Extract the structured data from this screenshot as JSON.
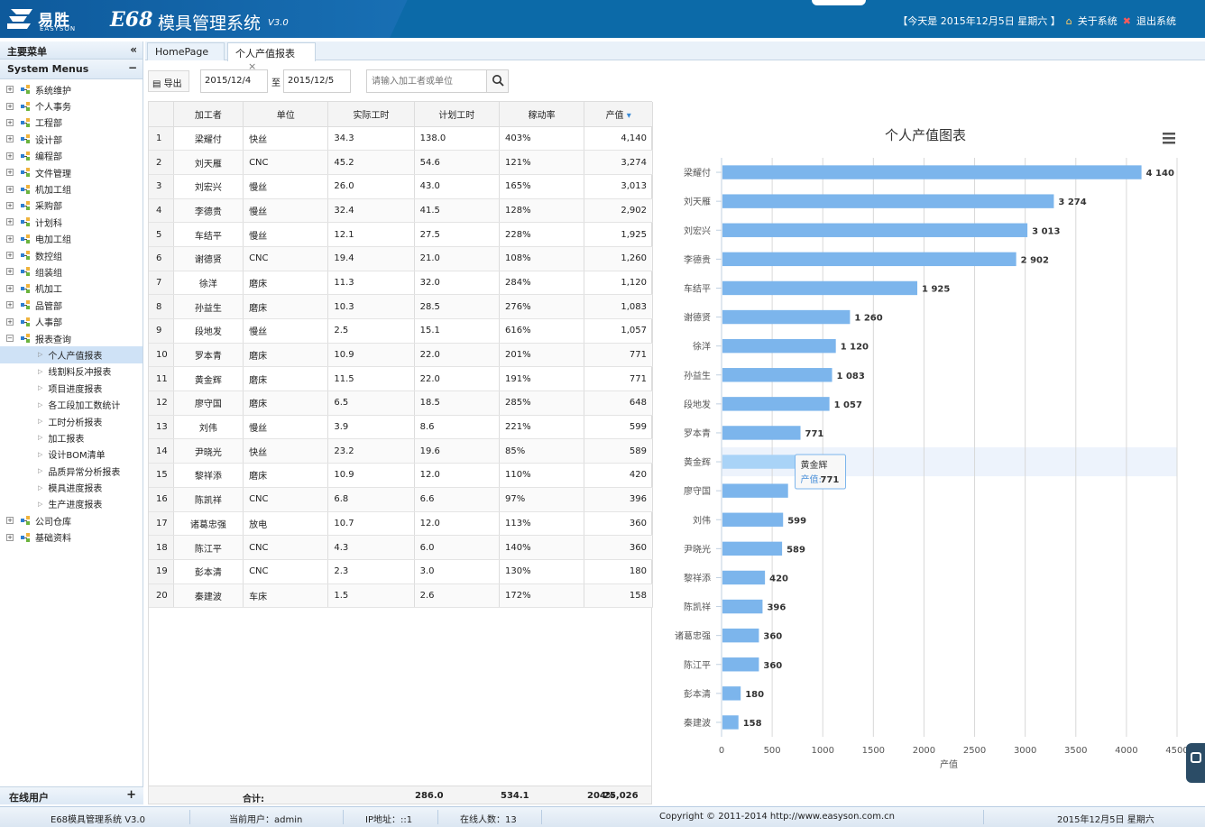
{
  "header": {
    "brand_cn": "易胜",
    "brand_en": "EASYSON",
    "product": "E68",
    "system_name": "模具管理系统",
    "version": "V3.0",
    "today": "【今天是 2015年12月5日 星期六 】",
    "about": "关于系统",
    "logout": "退出系统"
  },
  "sidebar": {
    "title": "主要菜单",
    "collapse": "«",
    "section": "System Menus",
    "section_tool": "−",
    "items": [
      {
        "label": "系统维护"
      },
      {
        "label": "个人事务"
      },
      {
        "label": "工程部"
      },
      {
        "label": "设计部"
      },
      {
        "label": "编程部"
      },
      {
        "label": "文件管理"
      },
      {
        "label": "机加工组"
      },
      {
        "label": "采购部"
      },
      {
        "label": "计划科"
      },
      {
        "label": "电加工组"
      },
      {
        "label": "数控组"
      },
      {
        "label": "组装组"
      },
      {
        "label": "机加工"
      },
      {
        "label": "品管部"
      },
      {
        "label": "人事部"
      },
      {
        "label": "报表查询"
      }
    ],
    "report_children": [
      {
        "label": "个人产值报表",
        "selected": true
      },
      {
        "label": "线割料反冲报表"
      },
      {
        "label": "项目进度报表"
      },
      {
        "label": "各工段加工数统计"
      },
      {
        "label": "工时分析报表"
      },
      {
        "label": "加工报表"
      },
      {
        "label": "设计BOM清单"
      },
      {
        "label": "品质异常分析报表"
      },
      {
        "label": "模具进度报表"
      },
      {
        "label": "生产进度报表"
      }
    ],
    "tail_items": [
      {
        "label": "公司仓库"
      },
      {
        "label": "基础资料"
      }
    ],
    "online_users": "在线用户",
    "online_tool": "+"
  },
  "tabs": {
    "home": "HomePage",
    "current": "个人产值报表",
    "close": "×"
  },
  "toolbar": {
    "export": "导出",
    "date_from": "2015/12/4",
    "to": "至",
    "date_to": "2015/12/5",
    "search_placeholder": "请输入加工者或单位"
  },
  "table": {
    "columns": [
      "加工者",
      "单位",
      "实际工时",
      "计划工时",
      "稼动率",
      "产值"
    ],
    "sort_indicator": "▾",
    "rows": [
      [
        "1",
        "梁耀付",
        "快丝",
        "34.3",
        "138.0",
        "403%",
        "4,140"
      ],
      [
        "2",
        "刘天雁",
        "CNC",
        "45.2",
        "54.6",
        "121%",
        "3,274"
      ],
      [
        "3",
        "刘宏兴",
        "慢丝",
        "26.0",
        "43.0",
        "165%",
        "3,013"
      ],
      [
        "4",
        "李德贵",
        "慢丝",
        "32.4",
        "41.5",
        "128%",
        "2,902"
      ],
      [
        "5",
        "车结平",
        "慢丝",
        "12.1",
        "27.5",
        "228%",
        "1,925"
      ],
      [
        "6",
        "谢德贤",
        "CNC",
        "19.4",
        "21.0",
        "108%",
        "1,260"
      ],
      [
        "7",
        "徐洋",
        "磨床",
        "11.3",
        "32.0",
        "284%",
        "1,120"
      ],
      [
        "8",
        "孙益生",
        "磨床",
        "10.3",
        "28.5",
        "276%",
        "1,083"
      ],
      [
        "9",
        "段地发",
        "慢丝",
        "2.5",
        "15.1",
        "616%",
        "1,057"
      ],
      [
        "10",
        "罗本青",
        "磨床",
        "10.9",
        "22.0",
        "201%",
        "771"
      ],
      [
        "11",
        "黄金辉",
        "磨床",
        "11.5",
        "22.0",
        "191%",
        "771"
      ],
      [
        "12",
        "廖守国",
        "磨床",
        "6.5",
        "18.5",
        "285%",
        "648"
      ],
      [
        "13",
        "刘伟",
        "慢丝",
        "3.9",
        "8.6",
        "221%",
        "599"
      ],
      [
        "14",
        "尹晓光",
        "快丝",
        "23.2",
        "19.6",
        "85%",
        "589"
      ],
      [
        "15",
        "黎祥添",
        "磨床",
        "10.9",
        "12.0",
        "110%",
        "420"
      ],
      [
        "16",
        "陈凯祥",
        "CNC",
        "6.8",
        "6.6",
        "97%",
        "396"
      ],
      [
        "17",
        "诸葛忠强",
        "放电",
        "10.7",
        "12.0",
        "113%",
        "360"
      ],
      [
        "18",
        "陈江平",
        "CNC",
        "4.3",
        "6.0",
        "140%",
        "360"
      ],
      [
        "19",
        "彭本清",
        "CNC",
        "2.3",
        "3.0",
        "130%",
        "180"
      ],
      [
        "20",
        "秦建波",
        "车床",
        "1.5",
        "2.6",
        "172%",
        "158"
      ]
    ],
    "footer": {
      "label": "合计:",
      "actual": "286.0",
      "planned": "534.1",
      "rate": "204%",
      "value": "25,026"
    }
  },
  "chart_data": {
    "type": "bar",
    "orientation": "horizontal",
    "title": "个人产值图表",
    "xlabel": "产值",
    "ylabel": "",
    "xlim": [
      0,
      4500
    ],
    "ticks": [
      "0",
      "500",
      "1000",
      "1500",
      "2000",
      "2500",
      "3000",
      "3500",
      "4000",
      "4500"
    ],
    "categories": [
      "梁耀付",
      "刘天雁",
      "刘宏兴",
      "李德贵",
      "车结平",
      "谢德贤",
      "徐洋",
      "孙益生",
      "段地发",
      "罗本青",
      "黄金辉",
      "廖守国",
      "刘伟",
      "尹晓光",
      "黎祥添",
      "陈凯祥",
      "诸葛忠强",
      "陈江平",
      "彭本清",
      "秦建波"
    ],
    "values": [
      4140,
      3274,
      3013,
      2902,
      1925,
      1260,
      1120,
      1083,
      1057,
      771,
      771,
      648,
      599,
      589,
      420,
      396,
      360,
      360,
      180,
      158
    ],
    "value_labels": [
      "4 140",
      "3 274",
      "3 013",
      "2 902",
      "1 925",
      "1 260",
      "1 120",
      "1 083",
      "1 057",
      "771",
      "",
      "",
      "599",
      "589",
      "420",
      "396",
      "360",
      "360",
      "180",
      "158"
    ],
    "grid": true,
    "bar_color": "#7cb5ec",
    "highlight_index": 10,
    "tooltip": {
      "name": "黄金辉",
      "label": "产值:",
      "value": "771"
    },
    "menu_icon": "menu-icon"
  },
  "status": {
    "app": "E68模具管理系统 V3.0",
    "user": "当前用户：admin",
    "ip": "IP地址：::1",
    "online": "在线人数：13",
    "copyright": "Copyright © 2011-2014    http://www.easyson.com.cn",
    "date": "2015年12月5日 星期六"
  }
}
